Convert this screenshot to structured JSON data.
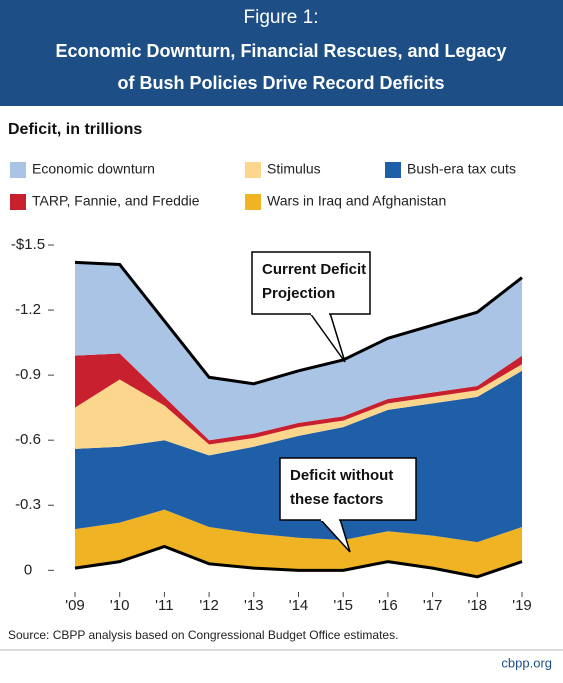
{
  "chart_data": {
    "type": "stacked_area",
    "figure_label": "Figure 1:",
    "title": [
      "Economic Downturn, Financial Rescues, and Legacy",
      "of Bush Policies Drive Record Deficits"
    ],
    "y_label": "Deficit, in trillions",
    "categories": [
      "'09",
      "'10",
      "'11",
      "'12",
      "'13",
      "'14",
      "'15",
      "'16",
      "'17",
      "'18",
      "'19"
    ],
    "baseline": {
      "values": [
        -0.01,
        -0.04,
        -0.11,
        -0.03,
        -0.01,
        0,
        0,
        -0.04,
        -0.01,
        0.03,
        -0.04
      ]
    },
    "series": [
      {
        "name": "Wars in Iraq and Afghanistan",
        "color": "#f0b323",
        "values": [
          -0.18,
          -0.18,
          -0.17,
          -0.17,
          -0.16,
          -0.15,
          -0.14,
          -0.14,
          -0.15,
          -0.16,
          -0.16
        ]
      },
      {
        "name": "Bush-era tax cuts",
        "color": "#1f5fa8",
        "values": [
          -0.37,
          -0.35,
          -0.32,
          -0.33,
          -0.4,
          -0.47,
          -0.52,
          -0.56,
          -0.61,
          -0.67,
          -0.72
        ]
      },
      {
        "name": "Stimulus",
        "color": "#fbd68c",
        "values": [
          -0.19,
          -0.31,
          -0.16,
          -0.05,
          -0.04,
          -0.04,
          -0.03,
          -0.03,
          -0.03,
          -0.03,
          -0.03
        ]
      },
      {
        "name": "TARP, Fannie, and Freddie",
        "color": "#c8202f",
        "values": [
          -0.24,
          -0.12,
          -0.04,
          -0.02,
          -0.02,
          -0.02,
          -0.02,
          -0.02,
          -0.02,
          -0.02,
          -0.04
        ]
      },
      {
        "name": "Economic downturn",
        "color": "#a9c4e4",
        "values": [
          -0.43,
          -0.41,
          -0.35,
          -0.29,
          -0.23,
          -0.24,
          -0.26,
          -0.28,
          -0.31,
          -0.34,
          -0.36
        ]
      }
    ],
    "ylim": [
      0.1,
      -1.5
    ],
    "yticks": [
      {
        "value": -1.5,
        "label": "-$1.5"
      },
      -1.2,
      -0.9,
      -0.6,
      -0.3,
      0
    ],
    "annotations": [
      {
        "lines": [
          "Current Deficit",
          "Projection"
        ]
      },
      {
        "lines": [
          "Deficit without",
          "these factors"
        ]
      }
    ],
    "source": "Source: CBPP analysis based on Congressional Budget Office estimates.",
    "credit": "cbpp.org"
  }
}
